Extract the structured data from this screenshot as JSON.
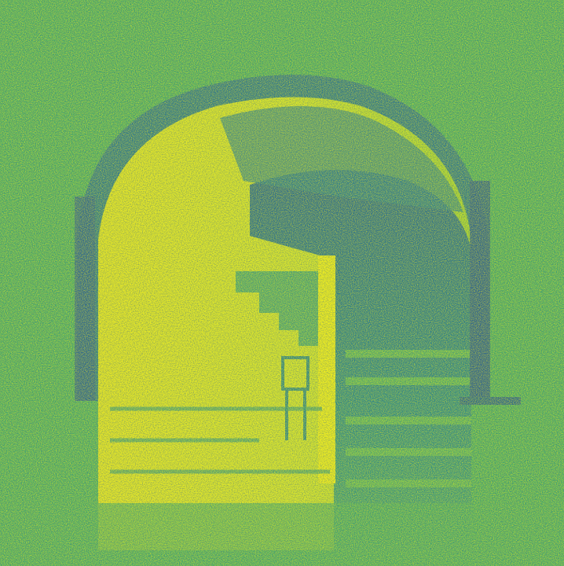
{
  "image": {
    "colormap": {
      "dark": "#2a5f92",
      "mid_dark": "#1f8c90",
      "mid": "#2fa37a",
      "bright": "#8fd13b",
      "highlight": "#dce82a",
      "peak": "#f2ee1f"
    }
  }
}
